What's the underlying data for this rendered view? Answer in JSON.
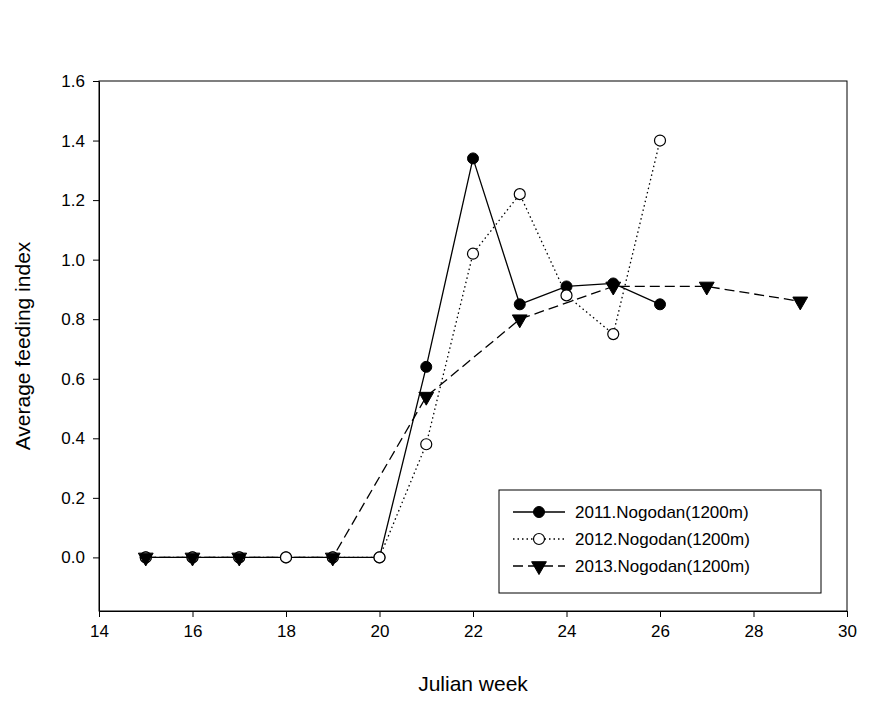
{
  "chart_data": {
    "type": "line",
    "x_label": "Julian week",
    "y_label": "Average feeding index",
    "xlim": [
      14,
      30
    ],
    "xticks": [
      14,
      16,
      18,
      20,
      22,
      24,
      26,
      28,
      30
    ],
    "ylim": [
      -0.18,
      1.6
    ],
    "yticks": [
      {
        "value": 0,
        "label": "0.0"
      },
      0.2,
      0.4,
      0.6,
      0.8,
      {
        "value": 1,
        "label": "1.0"
      },
      1.2,
      1.4,
      1.6
    ],
    "grid": false,
    "legend": "lower right",
    "series": [
      {
        "name": "2011.Nogodan(1200m)",
        "color": "#000000",
        "marker": "circle",
        "line_style": "solid",
        "x": [
          15,
          16,
          17,
          18,
          19,
          20,
          21,
          22,
          23,
          24,
          25,
          26
        ],
        "values": [
          0,
          0,
          0,
          0,
          0,
          0,
          0.64,
          1.34,
          0.85,
          0.91,
          0.92,
          0.85
        ]
      },
      {
        "name": "2012.Nogodan(1200m)",
        "color": "#000000",
        "marker": "circle-open",
        "line_style": "dotted",
        "x": [
          15,
          16,
          17,
          18,
          19,
          20,
          21,
          22,
          23,
          24,
          25,
          26
        ],
        "values": [
          0,
          0,
          0,
          0,
          0,
          0,
          0.38,
          1.02,
          1.22,
          0.88,
          0.75,
          1.4
        ]
      },
      {
        "name": "2013.Nogodan(1200m)",
        "color": "#000000",
        "marker": "triangle-down",
        "line_style": "dashed",
        "x": [
          15,
          16,
          17,
          19,
          21,
          23,
          25,
          27,
          29
        ],
        "values": [
          0,
          0,
          0,
          0,
          0.54,
          0.8,
          0.91,
          0.91,
          0.86
        ]
      }
    ]
  }
}
